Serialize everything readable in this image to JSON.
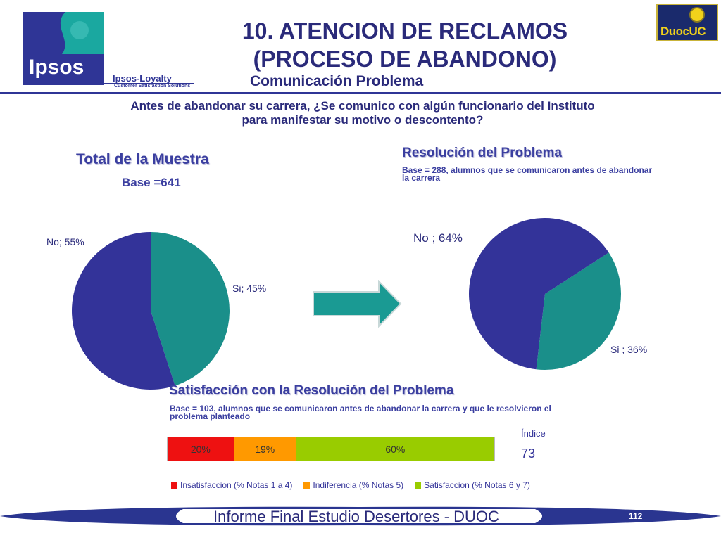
{
  "logos": {
    "ipsos_word": "Ipsos",
    "ipsos_loyalty": "Ipsos-Loyalty",
    "ipsos_loyalty_sub": "Customer Satisfaction Solutions",
    "duoc_word": "DuocUC"
  },
  "header": {
    "title_line1": "10. ATENCION DE RECLAMOS",
    "title_line2": "(PROCESO DE ABANDONO)",
    "subtitle": "Comunicación Problema"
  },
  "question": {
    "line1": "Antes de abandonar su carrera, ¿Se comunico con algún funcionario del Instituto",
    "line2": "para manifestar su motivo o descontento?"
  },
  "colors": {
    "navy": "#333399",
    "teal": "#1a8f8a",
    "red": "#ee1111",
    "orange": "#ff9900",
    "green": "#99cc00"
  },
  "chart_data": [
    {
      "type": "pie",
      "title": "Total de la Muestra",
      "base": "Base =641",
      "slices": [
        {
          "label": "Si",
          "value": 45,
          "display": "Si; 45%",
          "color": "#1a8f8a"
        },
        {
          "label": "No",
          "value": 55,
          "display": "No; 55%",
          "color": "#333399"
        }
      ]
    },
    {
      "type": "pie",
      "title": "Resolución del Problema",
      "base": "Base = 288, alumnos que se comunicaron antes de abandonar la carrera",
      "slices": [
        {
          "label": "Si",
          "value": 36,
          "display": "Si ; 36%",
          "color": "#1a8f8a"
        },
        {
          "label": "No",
          "value": 64,
          "display": "No ; 64%",
          "color": "#333399"
        }
      ]
    },
    {
      "type": "bar",
      "stacked": true,
      "orientation": "horizontal",
      "title": "Satisfacción con la Resolución del Problema",
      "base": "Base = 103, alumnos que se comunicaron antes de abandonar la carrera y que le resolvieron el problema planteado",
      "series": [
        {
          "name": "Insatisfaccion (% Notas 1 a 4)",
          "value": 20,
          "label": "20%",
          "color": "#ee1111"
        },
        {
          "name": "Indiferencia (% Notas 5)",
          "value": 19,
          "label": "19%",
          "color": "#ff9900"
        },
        {
          "name": "Satisfaccion (% Notas 6 y 7)",
          "value": 60,
          "label": "60%",
          "color": "#99cc00"
        }
      ],
      "indice_label": "Índice",
      "indice_value": "73",
      "legend_position": "bottom"
    }
  ],
  "footer": {
    "text": "Informe Final Estudio Desertores - DUOC",
    "page": "112"
  }
}
